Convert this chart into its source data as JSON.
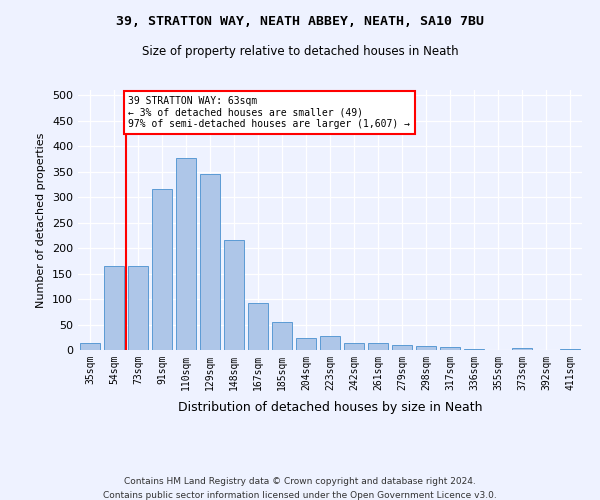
{
  "title1": "39, STRATTON WAY, NEATH ABBEY, NEATH, SA10 7BU",
  "title2": "Size of property relative to detached houses in Neath",
  "xlabel": "Distribution of detached houses by size in Neath",
  "ylabel": "Number of detached properties",
  "categories": [
    "35sqm",
    "54sqm",
    "73sqm",
    "91sqm",
    "110sqm",
    "129sqm",
    "148sqm",
    "167sqm",
    "185sqm",
    "204sqm",
    "223sqm",
    "242sqm",
    "261sqm",
    "279sqm",
    "298sqm",
    "317sqm",
    "336sqm",
    "355sqm",
    "373sqm",
    "392sqm",
    "411sqm"
  ],
  "values": [
    13,
    165,
    165,
    315,
    377,
    345,
    215,
    93,
    55,
    24,
    27,
    13,
    13,
    10,
    8,
    5,
    2,
    0,
    4,
    0,
    2
  ],
  "bar_color": "#aec6e8",
  "bar_edge_color": "#5b9bd5",
  "vline_color": "red",
  "vline_x_index": 1.5,
  "annotation_line1": "39 STRATTON WAY: 63sqm",
  "annotation_line2": "← 3% of detached houses are smaller (49)",
  "annotation_line3": "97% of semi-detached houses are larger (1,607) →",
  "annotation_box_color": "white",
  "annotation_box_edge": "red",
  "ylim": [
    0,
    510
  ],
  "yticks": [
    0,
    50,
    100,
    150,
    200,
    250,
    300,
    350,
    400,
    450,
    500
  ],
  "footer1": "Contains HM Land Registry data © Crown copyright and database right 2024.",
  "footer2": "Contains public sector information licensed under the Open Government Licence v3.0.",
  "bg_color": "#eef2ff"
}
